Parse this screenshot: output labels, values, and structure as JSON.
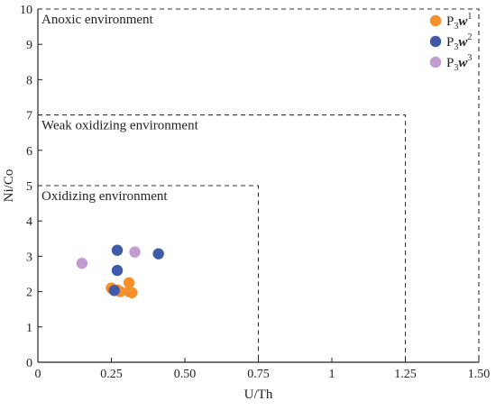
{
  "chart_data": {
    "type": "scatter",
    "title": "",
    "xlabel": "U/Th",
    "ylabel": "Ni/Co",
    "xlim": [
      0,
      1.5
    ],
    "ylim": [
      0,
      10
    ],
    "xticks": [
      {
        "value": 0,
        "label": "0"
      },
      {
        "value": 0.25,
        "label": "0.25"
      },
      {
        "value": 0.5,
        "label": "0.50"
      },
      {
        "value": 0.75,
        "label": "0.75"
      },
      {
        "value": 1,
        "label": "1"
      },
      {
        "value": 1.25,
        "label": "1.25"
      },
      {
        "value": 1.5,
        "label": "1.50"
      }
    ],
    "yticks": [
      {
        "value": 0,
        "label": "0"
      },
      {
        "value": 1,
        "label": "1"
      },
      {
        "value": 2,
        "label": "2"
      },
      {
        "value": 3,
        "label": "3"
      },
      {
        "value": 4,
        "label": "4"
      },
      {
        "value": 5,
        "label": "5"
      },
      {
        "value": 6,
        "label": "6"
      },
      {
        "value": 7,
        "label": "7"
      },
      {
        "value": 8,
        "label": "8"
      },
      {
        "value": 9,
        "label": "9"
      },
      {
        "value": 10,
        "label": "10"
      }
    ],
    "regions": [
      {
        "label": "Anoxic environment",
        "x_max": 1.5,
        "y_max": 10
      },
      {
        "label": "Weak oxidizing environment",
        "x_max": 1.25,
        "y_max": 7
      },
      {
        "label": "Oxidizing environment",
        "x_max": 0.75,
        "y_max": 5
      }
    ],
    "legend_position": "top-right",
    "grid": false,
    "series": [
      {
        "name_base": "P",
        "name_sub": "3",
        "name_italic": "w",
        "name_sup": "1",
        "color": "#f5902a",
        "points": [
          {
            "x": 0.25,
            "y": 2.1
          },
          {
            "x": 0.27,
            "y": 2.05
          },
          {
            "x": 0.28,
            "y": 2.0
          },
          {
            "x": 0.31,
            "y": 2.25
          },
          {
            "x": 0.31,
            "y": 2.0
          },
          {
            "x": 0.32,
            "y": 1.97
          }
        ]
      },
      {
        "name_base": "P",
        "name_sub": "3",
        "name_italic": "w",
        "name_sup": "2",
        "color": "#3e5aa8",
        "points": [
          {
            "x": 0.26,
            "y": 2.03
          },
          {
            "x": 0.27,
            "y": 2.6
          },
          {
            "x": 0.27,
            "y": 3.17
          },
          {
            "x": 0.41,
            "y": 3.07
          }
        ]
      },
      {
        "name_base": "P",
        "name_sub": "3",
        "name_italic": "w",
        "name_sup": "3",
        "color": "#c39bd3",
        "points": [
          {
            "x": 0.15,
            "y": 2.8
          },
          {
            "x": 0.33,
            "y": 3.12
          }
        ]
      }
    ]
  }
}
